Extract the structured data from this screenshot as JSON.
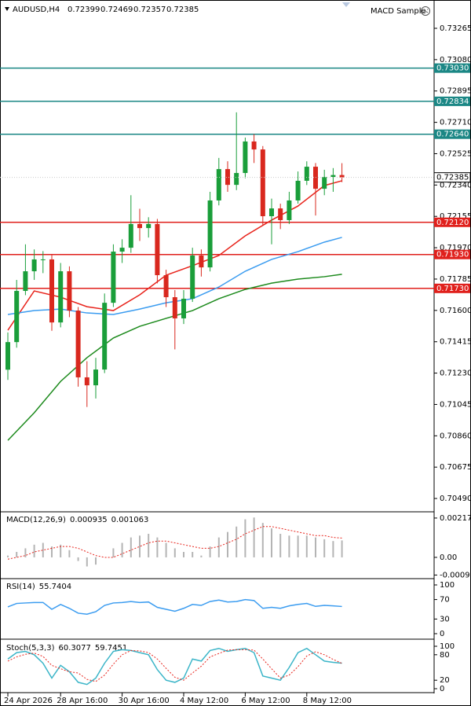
{
  "chart_data": [
    {
      "type": "candlestick",
      "symbol": "AUDUSD,H4",
      "ohlc": [
        0.72399,
        0.72469,
        0.72357,
        0.72385
      ],
      "expert": "MACD Sample",
      "bull_color": "#1a9e3a",
      "bear_color": "#d9281e",
      "categories": [
        "24 Apr 2026",
        null,
        null,
        null,
        null,
        null,
        "28 Apr 16:00",
        null,
        null,
        null,
        null,
        null,
        null,
        "30 Apr 16:00",
        null,
        null,
        null,
        null,
        null,
        null,
        "4 May 12:00",
        null,
        null,
        null,
        null,
        null,
        null,
        "6 May 12:00",
        null,
        null,
        null,
        null,
        null,
        null,
        "8 May 12:00",
        null,
        null,
        null,
        null
      ],
      "candles": [
        [
          0.7125,
          0.7147,
          0.7119,
          0.71413
        ],
        [
          0.71413,
          0.7178,
          0.7138,
          0.71715
        ],
        [
          0.71715,
          0.7199,
          0.7169,
          0.71831
        ],
        [
          0.71831,
          0.7196,
          0.7178,
          0.71901
        ],
        [
          0.71901,
          0.7195,
          0.7182,
          0.71901
        ],
        [
          0.71901,
          0.7193,
          0.7148,
          0.71529
        ],
        [
          0.71529,
          0.7188,
          0.715,
          0.71831
        ],
        [
          0.71831,
          0.7186,
          0.7156,
          0.71599
        ],
        [
          0.71599,
          0.7162,
          0.7115,
          0.71205
        ],
        [
          0.71205,
          0.713,
          0.7103,
          0.71158
        ],
        [
          0.71158,
          0.7132,
          0.7108,
          0.71251
        ],
        [
          0.71251,
          0.717,
          0.7123,
          0.71645
        ],
        [
          0.71645,
          0.7199,
          0.7162,
          0.71947
        ],
        [
          0.71947,
          0.7202,
          0.7188,
          0.7197
        ],
        [
          0.7197,
          0.7228,
          0.7194,
          0.7211
        ],
        [
          0.7211,
          0.722,
          0.7201,
          0.72086
        ],
        [
          0.72086,
          0.7215,
          0.7203,
          0.7211
        ],
        [
          0.7211,
          0.7214,
          0.7176,
          0.71808
        ],
        [
          0.71808,
          0.7184,
          0.7162,
          0.71678
        ],
        [
          0.71678,
          0.7172,
          0.7137,
          0.71553
        ],
        [
          0.71553,
          0.7172,
          0.7152,
          0.71669
        ],
        [
          0.71669,
          0.7197,
          0.7165,
          0.71924
        ],
        [
          0.71924,
          0.7196,
          0.718,
          0.71854
        ],
        [
          0.71854,
          0.723,
          0.7183,
          0.72249
        ],
        [
          0.72249,
          0.725,
          0.7222,
          0.72434
        ],
        [
          0.72434,
          0.7248,
          0.723,
          0.72341
        ],
        [
          0.72341,
          0.72769,
          0.7231,
          0.72411
        ],
        [
          0.72411,
          0.7262,
          0.7238,
          0.72597
        ],
        [
          0.72597,
          0.7264,
          0.7247,
          0.7255
        ],
        [
          0.7255,
          0.7257,
          0.721,
          0.72156
        ],
        [
          0.72156,
          0.7226,
          0.7199,
          0.72202
        ],
        [
          0.72202,
          0.7223,
          0.7208,
          0.72133
        ],
        [
          0.72133,
          0.723,
          0.7211,
          0.72249
        ],
        [
          0.72249,
          0.7242,
          0.7223,
          0.72365
        ],
        [
          0.72365,
          0.7248,
          0.7234,
          0.72448
        ],
        [
          0.72448,
          0.7247,
          0.7216,
          0.72318
        ],
        [
          0.72318,
          0.7243,
          0.7228,
          0.72388
        ],
        [
          0.72388,
          0.7244,
          0.723,
          0.72399
        ],
        [
          0.72399,
          0.72469,
          0.72357,
          0.72385
        ]
      ],
      "series": [
        {
          "color": "#e8231b",
          "x": [
            0,
            3,
            6,
            9,
            12,
            15,
            18,
            21,
            24,
            27,
            30,
            33,
            36,
            38
          ],
          "values": [
            0.71483,
            0.71715,
            0.71678,
            0.71622,
            0.71599,
            0.71692,
            0.71808,
            0.71864,
            0.71924,
            0.7204,
            0.72133,
            0.72216,
            0.72337,
            0.72365
          ]
        },
        {
          "color": "#3b9cf0",
          "x": [
            0,
            3,
            6,
            9,
            12,
            15,
            18,
            21,
            24,
            27,
            30,
            33,
            36,
            38
          ],
          "values": [
            0.71576,
            0.71599,
            0.71608,
            0.71585,
            0.71576,
            0.71608,
            0.71645,
            0.71669,
            0.71738,
            0.71831,
            0.71901,
            0.71947,
            0.72003,
            0.72031
          ]
        },
        {
          "color": "#1c8a1c",
          "x": [
            0,
            3,
            6,
            9,
            12,
            15,
            18,
            21,
            24,
            27,
            30,
            33,
            36,
            38
          ],
          "values": [
            0.70833,
            0.70996,
            0.71181,
            0.71321,
            0.71437,
            0.71506,
            0.71553,
            0.71599,
            0.71669,
            0.71724,
            0.71761,
            0.71785,
            0.71799,
            0.71813
          ]
        }
      ],
      "levels": [
        {
          "value": 0.7303,
          "label": "0.73030",
          "color": "#1b8785"
        },
        {
          "value": 0.72834,
          "label": "0.72834",
          "color": "#1b8785"
        },
        {
          "value": 0.7264,
          "label": "0.72640",
          "color": "#1b8785"
        },
        {
          "value": 0.7212,
          "label": "0.72120",
          "color": "#e0201c"
        },
        {
          "value": 0.7193,
          "label": "0.71930",
          "color": "#e0201c"
        },
        {
          "value": 0.7173,
          "label": "0.71730",
          "color": "#e0201c"
        }
      ],
      "last_price": 0.72385,
      "ylim": [
        0.70416,
        0.73432
      ],
      "yticks": [
        0.73265,
        {
          "value": 0.7308,
          "label": "0.73080"
        },
        0.72895,
        {
          "value": 0.7271,
          "label": "0.72710"
        },
        0.72525,
        {
          "value": 0.7234,
          "label": "0.72340"
        },
        0.72155,
        {
          "value": 0.7197,
          "label": "0.71970"
        },
        0.71785,
        {
          "value": 0.716,
          "label": "0.71600"
        },
        0.71415,
        {
          "value": 0.7123,
          "label": "0.71230"
        },
        0.71045,
        {
          "value": 0.7086,
          "label": "0.70860"
        },
        0.70675,
        {
          "value": 0.7049,
          "label": "0.70490"
        }
      ]
    },
    {
      "type": "macd",
      "title": "MACD(12,26,9)",
      "shown": [
        0.000935,
        0.001063
      ],
      "series": [
        {
          "color": "#b4b4b4",
          "values": [
            0.0001,
            0.0003,
            0.0005,
            0.0007,
            0.0008,
            0.0006,
            0.0007,
            0.0004,
            -0.0002,
            -0.0005,
            -0.0004,
            0.0,
            0.0005,
            0.0008,
            0.0011,
            0.0012,
            0.0013,
            0.0011,
            0.0008,
            0.0005,
            0.0003,
            0.0003,
            0.0001,
            0.0006,
            0.0011,
            0.0014,
            0.0017,
            0.0021,
            0.0022,
            0.0019,
            0.0016,
            0.0013,
            0.0012,
            0.0012,
            0.0012,
            0.0011,
            0.001,
            0.0009,
            0.000935
          ]
        },
        {
          "color": "#e8231b",
          "values": [
            -0.0001,
            0.0,
            0.0001,
            0.0003,
            0.0004,
            0.0005,
            0.0006,
            0.0006,
            0.0005,
            0.0003,
            0.0001,
            0.0,
            0.0,
            0.0002,
            0.0004,
            0.0006,
            0.0008,
            0.0009,
            0.0009,
            0.0008,
            0.0007,
            0.0006,
            0.0005,
            0.0005,
            0.0006,
            0.0008,
            0.001,
            0.0013,
            0.0015,
            0.0017,
            0.0017,
            0.0016,
            0.0015,
            0.0014,
            0.0013,
            0.0012,
            0.0012,
            0.0011,
            0.001063
          ]
        }
      ],
      "ylim": [
        -0.00113,
        0.00247
      ],
      "yticks": [
        0.00217,
        {
          "value": 0,
          "label": "0.00"
        },
        -0.000975
      ]
    },
    {
      "type": "line",
      "title": "RSI(14)",
      "shown": [
        55.7404
      ],
      "series": [
        {
          "color": "#3b9cf0",
          "values": [
            55,
            62,
            63,
            64,
            64,
            50,
            60,
            52,
            42,
            40,
            45,
            58,
            63,
            64,
            66,
            64,
            65,
            54,
            50,
            46,
            52,
            60,
            58,
            66,
            69,
            65,
            66,
            70,
            68,
            52,
            54,
            52,
            57,
            60,
            62,
            56,
            58,
            57,
            55.7404
          ]
        }
      ],
      "ylim": [
        -9.7,
        111.3
      ],
      "yticks": [
        100,
        70,
        30,
        0
      ]
    },
    {
      "type": "line",
      "title": "Stoch(5,3,3)",
      "shown": [
        60.3077,
        59.7451
      ],
      "series": [
        {
          "color": "#3bb5c8",
          "values": [
            70,
            85,
            88,
            80,
            60,
            25,
            55,
            40,
            15,
            10,
            25,
            60,
            88,
            92,
            90,
            85,
            80,
            45,
            20,
            15,
            25,
            70,
            65,
            90,
            95,
            88,
            92,
            95,
            85,
            30,
            25,
            20,
            50,
            85,
            95,
            80,
            65,
            62,
            60.3077
          ]
        },
        {
          "color": "#e8231b",
          "dashed": true,
          "values": [
            65,
            75,
            81,
            84,
            76,
            55,
            47,
            40,
            37,
            22,
            17,
            32,
            58,
            80,
            90,
            89,
            85,
            70,
            48,
            27,
            20,
            37,
            53,
            75,
            83,
            91,
            92,
            92,
            91,
            70,
            47,
            25,
            32,
            52,
            77,
            87,
            80,
            69,
            59.7451
          ]
        }
      ],
      "ylim": [
        -7.4,
        113
      ],
      "yticks": [
        100,
        80,
        20,
        0
      ]
    }
  ]
}
